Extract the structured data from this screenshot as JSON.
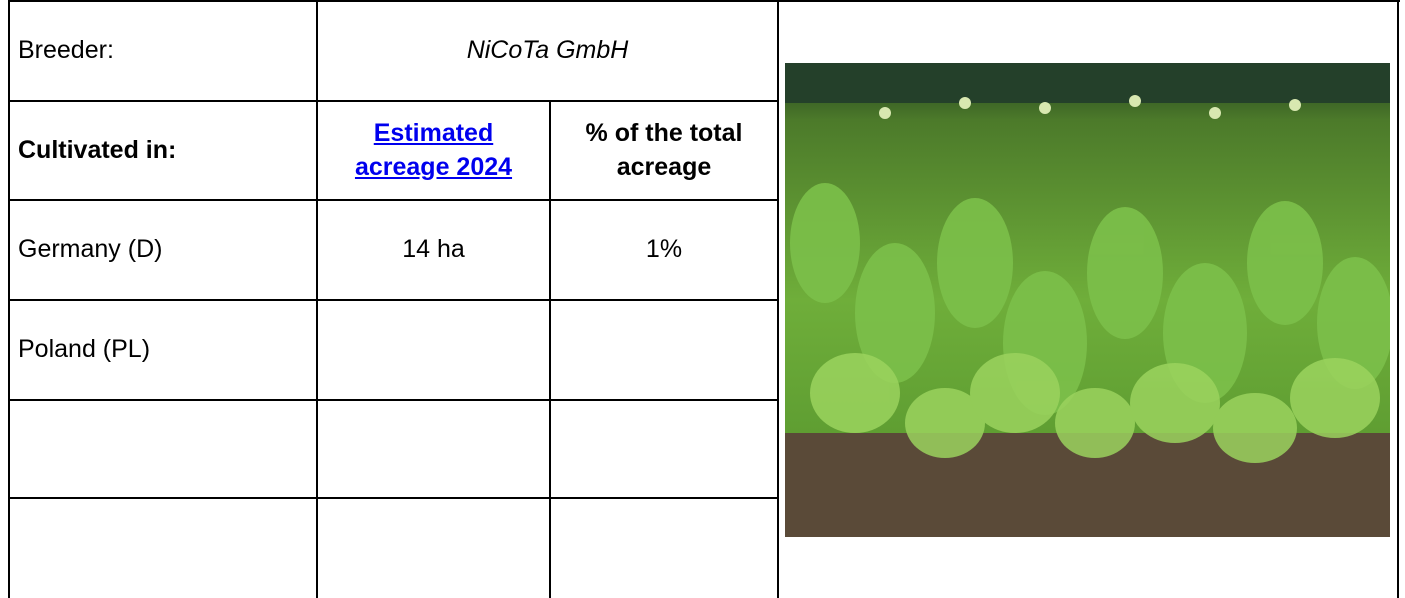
{
  "table": {
    "breeder_label": "Breeder:",
    "breeder": "NiCoTa GmbH",
    "header": [
      "Cultivated in:",
      "Estimated acreage 2024",
      "% of the total acreage"
    ],
    "rows": [
      [
        "Germany (D)",
        "14 ha",
        "1%"
      ],
      [
        "Poland (PL)"
      ]
    ]
  }
}
